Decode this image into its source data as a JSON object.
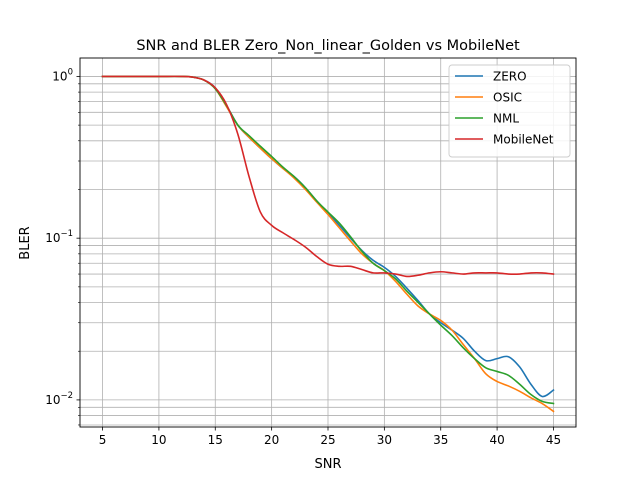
{
  "chart_data": {
    "type": "line",
    "title": "SNR and BLER Zero_Non_linear_Golden vs MobileNet",
    "xlabel": "SNR",
    "ylabel": "BLER",
    "xlim": [
      3.0,
      47.0
    ],
    "ylim": [
      0.0068,
      1.3
    ],
    "yscale": "log",
    "grid": true,
    "legend_position": "top-right",
    "xticks": [
      5,
      10,
      15,
      20,
      25,
      30,
      35,
      40,
      45
    ],
    "xtick_labels": [
      "5",
      "10",
      "15",
      "20",
      "25",
      "30",
      "35",
      "40",
      "45"
    ],
    "yticks_major": [
      {
        "value": 1,
        "base": "10",
        "exp": "0"
      },
      {
        "value": 0.1,
        "base": "10",
        "exp": "−1"
      },
      {
        "value": 0.01,
        "base": "10",
        "exp": "−2"
      }
    ],
    "x": [
      5,
      8,
      10,
      12,
      13,
      14,
      15,
      16,
      17,
      18,
      19,
      20,
      21,
      22,
      23,
      24,
      25,
      26,
      27,
      28,
      29,
      30,
      31,
      32,
      33,
      34,
      35,
      36,
      37,
      38,
      39,
      40,
      41,
      42,
      43,
      44,
      45
    ],
    "series": [
      {
        "name": "ZERO",
        "color": "#1f77b4",
        "values": [
          1.0,
          1.0,
          1.0,
          1.0,
          0.99,
          0.95,
          0.85,
          0.66,
          0.5,
          0.42,
          0.36,
          0.31,
          0.27,
          0.24,
          0.205,
          0.17,
          0.143,
          0.12,
          0.1,
          0.084,
          0.073,
          0.066,
          0.058,
          0.049,
          0.041,
          0.034,
          0.03,
          0.027,
          0.024,
          0.02,
          0.0175,
          0.018,
          0.0185,
          0.016,
          0.0125,
          0.0105,
          0.0115
        ]
      },
      {
        "name": "OSIC",
        "color": "#ff7f0e",
        "values": [
          1.0,
          1.0,
          1.0,
          1.0,
          0.99,
          0.95,
          0.84,
          0.65,
          0.5,
          0.42,
          0.36,
          0.31,
          0.27,
          0.235,
          0.2,
          0.167,
          0.14,
          0.116,
          0.096,
          0.08,
          0.07,
          0.063,
          0.054,
          0.045,
          0.038,
          0.034,
          0.031,
          0.027,
          0.022,
          0.018,
          0.0145,
          0.013,
          0.0122,
          0.0113,
          0.0103,
          0.0095,
          0.0085
        ]
      },
      {
        "name": "NML",
        "color": "#2ca02c",
        "values": [
          1.0,
          1.0,
          1.0,
          1.0,
          0.99,
          0.95,
          0.84,
          0.66,
          0.5,
          0.43,
          0.37,
          0.32,
          0.275,
          0.24,
          0.205,
          0.17,
          0.145,
          0.124,
          0.102,
          0.083,
          0.07,
          0.063,
          0.056,
          0.047,
          0.04,
          0.034,
          0.029,
          0.025,
          0.021,
          0.018,
          0.0158,
          0.015,
          0.0142,
          0.0125,
          0.0108,
          0.0098,
          0.0095
        ]
      },
      {
        "name": "MobileNet",
        "color": "#d62728",
        "values": [
          1.0,
          1.0,
          1.0,
          1.0,
          0.99,
          0.95,
          0.85,
          0.67,
          0.44,
          0.24,
          0.145,
          0.12,
          0.108,
          0.098,
          0.088,
          0.077,
          0.069,
          0.067,
          0.067,
          0.064,
          0.061,
          0.061,
          0.06,
          0.058,
          0.059,
          0.061,
          0.062,
          0.061,
          0.06,
          0.061,
          0.061,
          0.061,
          0.06,
          0.06,
          0.061,
          0.061,
          0.06
        ]
      }
    ]
  }
}
